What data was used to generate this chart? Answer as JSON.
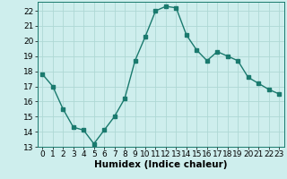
{
  "x": [
    0,
    1,
    2,
    3,
    4,
    5,
    6,
    7,
    8,
    9,
    10,
    11,
    12,
    13,
    14,
    15,
    16,
    17,
    18,
    19,
    20,
    21,
    22,
    23
  ],
  "y": [
    17.8,
    17.0,
    15.5,
    14.3,
    14.1,
    13.2,
    14.1,
    15.0,
    16.2,
    18.7,
    20.3,
    22.0,
    22.3,
    22.2,
    20.4,
    19.4,
    18.7,
    19.3,
    19.0,
    18.7,
    17.6,
    17.2,
    16.8,
    16.5
  ],
  "line_color": "#1a7a6e",
  "marker": "s",
  "markersize": 2.5,
  "linewidth": 1.0,
  "bg_color": "#ceeeed",
  "grid_color": "#aed8d4",
  "xlabel": "Humidex (Indice chaleur)",
  "xlabel_fontsize": 7.5,
  "tick_fontsize": 6.5,
  "ylim": [
    13,
    22.6
  ],
  "yticks": [
    13,
    14,
    15,
    16,
    17,
    18,
    19,
    20,
    21,
    22
  ],
  "xticks": [
    0,
    1,
    2,
    3,
    4,
    5,
    6,
    7,
    8,
    9,
    10,
    11,
    12,
    13,
    14,
    15,
    16,
    17,
    18,
    19,
    20,
    21,
    22,
    23
  ],
  "xlim": [
    -0.5,
    23.5
  ]
}
